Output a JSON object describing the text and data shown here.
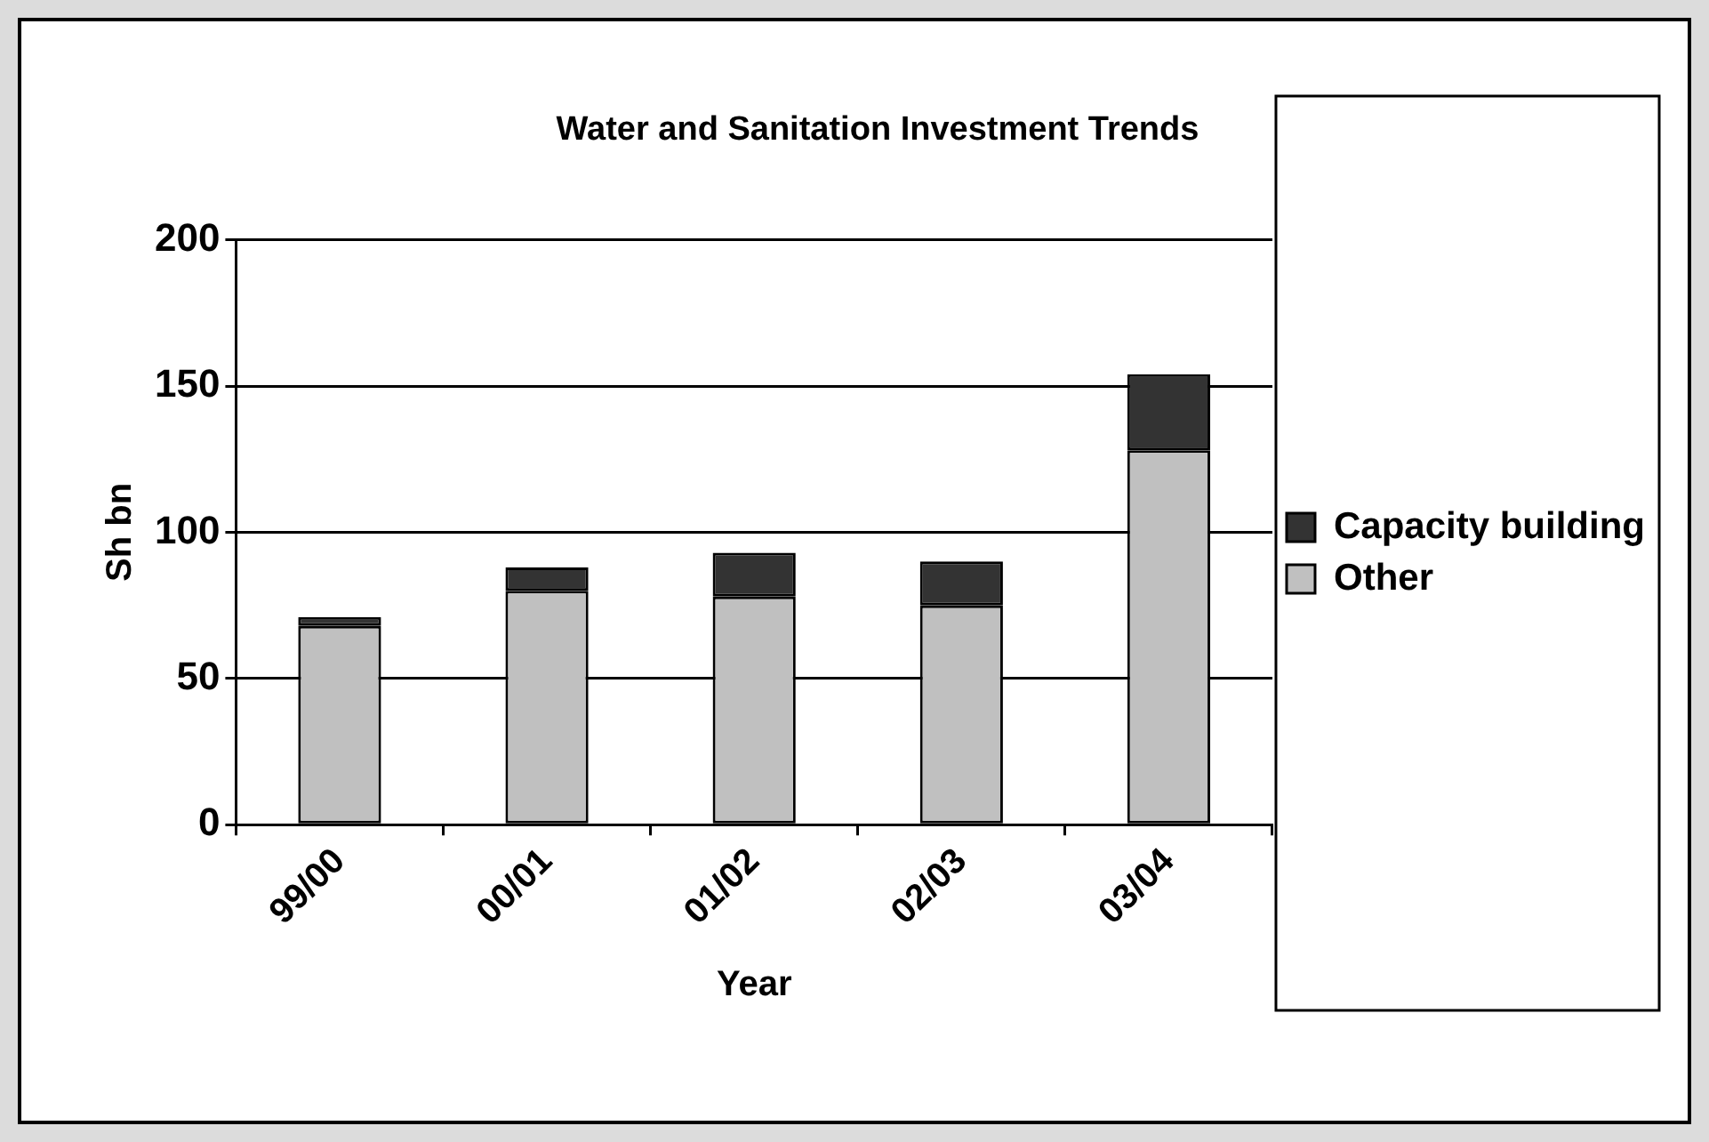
{
  "chart_data": {
    "type": "bar",
    "title": "Water and Sanitation Investment Trends",
    "xlabel": "Year",
    "ylabel": "Sh bn",
    "categories": [
      "99/00",
      "00/01",
      "01/02",
      "02/03",
      "03/04"
    ],
    "series": [
      {
        "name": "Other",
        "color": "#c0c0c0",
        "values": [
          68,
          80,
          78,
          75,
          128
        ]
      },
      {
        "name": "Capacity building",
        "color": "#333333",
        "values": [
          3,
          8,
          15,
          15,
          26
        ]
      }
    ],
    "stacked": true,
    "ylim": [
      0,
      200
    ],
    "yticks": [
      0,
      50,
      100,
      150,
      200
    ],
    "grid": "y",
    "legend": "right"
  }
}
